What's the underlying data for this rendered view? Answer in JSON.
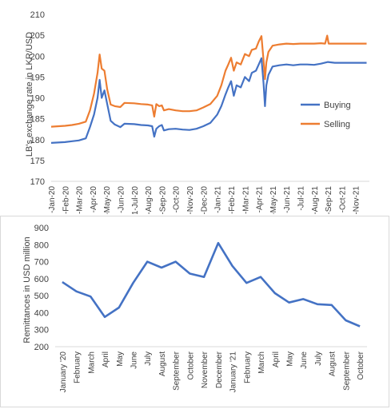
{
  "chart_data": [
    {
      "type": "line",
      "title": "",
      "xlabel": "",
      "ylabel": "LB's exchange rate in LKR/USD",
      "ylim": [
        170,
        210
      ],
      "yticks": [
        170,
        175,
        180,
        185,
        190,
        195,
        200,
        205,
        210
      ],
      "xtick_labels": [
        "-Jan-20",
        "-Feb-20",
        "-Mar-20",
        "-Apr-20",
        "-May-20",
        "-Jun-20",
        "1-Jul-20",
        "-Aug-20",
        "-Sep-20",
        "-Oct-20",
        "-Nov-20",
        "-Dec-20",
        "-Jan-21",
        "-Feb-21",
        "-Mar-21",
        "-Apr-21",
        "-May-21",
        "-Jun-21",
        "-Jul-21",
        "-Aug-21",
        "-Sep-21",
        "-Oct-21",
        "-Nov-21"
      ],
      "legend_position": "right",
      "series": [
        {
          "name": "Buying",
          "color": "#4472c4",
          "points": [
            [
              0,
              179.2
            ],
            [
              1,
              179.4
            ],
            [
              1.5,
              179.6
            ],
            [
              2,
              179.8
            ],
            [
              2.5,
              180.3
            ],
            [
              2.8,
              183
            ],
            [
              3.1,
              186
            ],
            [
              3.35,
              190
            ],
            [
              3.5,
              194.3
            ],
            [
              3.65,
              190
            ],
            [
              3.85,
              191.8
            ],
            [
              4.05,
              188.5
            ],
            [
              4.3,
              184.5
            ],
            [
              4.6,
              183.6
            ],
            [
              5,
              183
            ],
            [
              5.3,
              183.8
            ],
            [
              6,
              183.7
            ],
            [
              6.5,
              183.5
            ],
            [
              7,
              183.4
            ],
            [
              7.3,
              183.2
            ],
            [
              7.45,
              180.7
            ],
            [
              7.6,
              182.6
            ],
            [
              7.8,
              183.2
            ],
            [
              8,
              183.5
            ],
            [
              8.15,
              182.2
            ],
            [
              8.5,
              182.5
            ],
            [
              9,
              182.6
            ],
            [
              9.5,
              182.4
            ],
            [
              10,
              182.3
            ],
            [
              10.5,
              182.6
            ],
            [
              11,
              183.2
            ],
            [
              11.5,
              184
            ],
            [
              12,
              186
            ],
            [
              12.3,
              188
            ],
            [
              12.6,
              190.8
            ],
            [
              12.8,
              192.5
            ],
            [
              13,
              194
            ],
            [
              13.2,
              190.5
            ],
            [
              13.4,
              193
            ],
            [
              13.7,
              192.5
            ],
            [
              14,
              195
            ],
            [
              14.3,
              194
            ],
            [
              14.5,
              196
            ],
            [
              14.8,
              196.5
            ],
            [
              15,
              198
            ],
            [
              15.2,
              199.5
            ],
            [
              15.35,
              193.5
            ],
            [
              15.45,
              188
            ],
            [
              15.55,
              193
            ],
            [
              15.7,
              195.5
            ],
            [
              16,
              197.5
            ],
            [
              16.5,
              197.8
            ],
            [
              17,
              198
            ],
            [
              17.5,
              197.8
            ],
            [
              18,
              198
            ],
            [
              18.5,
              198
            ],
            [
              19,
              197.9
            ],
            [
              19.5,
              198.2
            ],
            [
              20,
              198.6
            ],
            [
              20.5,
              198.4
            ],
            [
              21,
              198.4
            ],
            [
              22,
              198.4
            ],
            [
              22.8,
              198.4
            ]
          ]
        },
        {
          "name": "Selling",
          "color": "#ed7d31",
          "points": [
            [
              0,
              183.1
            ],
            [
              1,
              183.3
            ],
            [
              1.5,
              183.5
            ],
            [
              2,
              183.8
            ],
            [
              2.5,
              184.3
            ],
            [
              2.8,
              187
            ],
            [
              3.1,
              191
            ],
            [
              3.35,
              196
            ],
            [
              3.5,
              200.4
            ],
            [
              3.65,
              197
            ],
            [
              3.85,
              196.5
            ],
            [
              4.05,
              192
            ],
            [
              4.3,
              188.4
            ],
            [
              4.6,
              188
            ],
            [
              5,
              187.8
            ],
            [
              5.3,
              188.8
            ],
            [
              6,
              188.7
            ],
            [
              6.5,
              188.5
            ],
            [
              7,
              188.4
            ],
            [
              7.3,
              188.2
            ],
            [
              7.45,
              185.5
            ],
            [
              7.6,
              188.5
            ],
            [
              7.8,
              188
            ],
            [
              8,
              188.2
            ],
            [
              8.15,
              187
            ],
            [
              8.5,
              187.3
            ],
            [
              9,
              187
            ],
            [
              9.5,
              186.8
            ],
            [
              10,
              186.8
            ],
            [
              10.5,
              187
            ],
            [
              11,
              187.7
            ],
            [
              11.5,
              188.5
            ],
            [
              12,
              190.5
            ],
            [
              12.3,
              193
            ],
            [
              12.6,
              196.5
            ],
            [
              12.8,
              198
            ],
            [
              13,
              199.6
            ],
            [
              13.2,
              196.5
            ],
            [
              13.4,
              198.5
            ],
            [
              13.7,
              198
            ],
            [
              14,
              200.5
            ],
            [
              14.3,
              200
            ],
            [
              14.5,
              201.5
            ],
            [
              14.8,
              201.8
            ],
            [
              15,
              203.5
            ],
            [
              15.2,
              204.8
            ],
            [
              15.35,
              199
            ],
            [
              15.45,
              194.5
            ],
            [
              15.55,
              198.5
            ],
            [
              15.7,
              201
            ],
            [
              16,
              202.5
            ],
            [
              16.5,
              202.8
            ],
            [
              17,
              203
            ],
            [
              17.5,
              202.9
            ],
            [
              18,
              203
            ],
            [
              18.5,
              203
            ],
            [
              19,
              203
            ],
            [
              19.5,
              203.1
            ],
            [
              19.8,
              203
            ],
            [
              19.95,
              204.9
            ],
            [
              20.05,
              203
            ],
            [
              20.5,
              203
            ],
            [
              21,
              203
            ],
            [
              22,
              203
            ],
            [
              22.8,
              203
            ]
          ]
        }
      ]
    },
    {
      "type": "line",
      "title": "",
      "xlabel": "",
      "ylabel": "Remittances in USD million",
      "ylim": [
        200,
        900
      ],
      "yticks": [
        200,
        300,
        400,
        500,
        600,
        700,
        800,
        900
      ],
      "categories": [
        "January '20",
        "February",
        "March",
        "April",
        "May",
        "June",
        "July",
        "August",
        "September",
        "October",
        "November",
        "December",
        "January '21",
        "February",
        "March",
        "April",
        "May",
        "June",
        "July",
        "August",
        "September",
        "October"
      ],
      "series": [
        {
          "name": "",
          "color": "#4472c4",
          "values": [
            580,
            525,
            495,
            375,
            430,
            575,
            700,
            665,
            700,
            630,
            610,
            810,
            675,
            575,
            610,
            515,
            460,
            480,
            450,
            445,
            355,
            320
          ]
        }
      ]
    }
  ]
}
